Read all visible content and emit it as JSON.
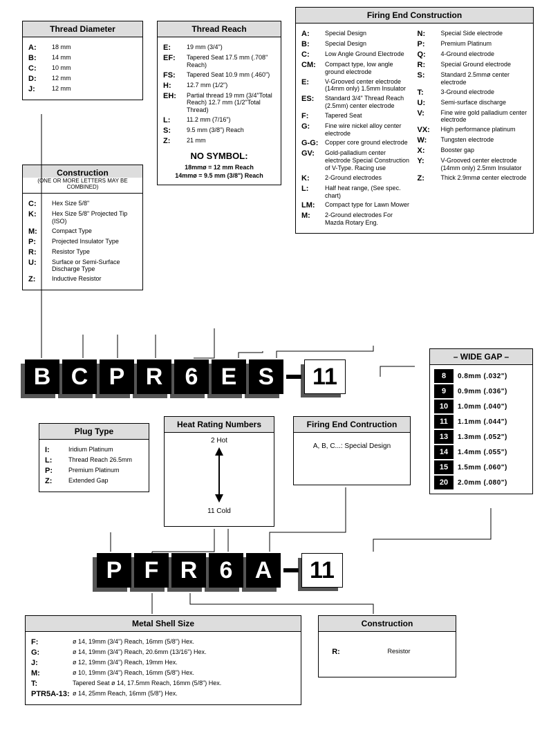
{
  "thread_diameter": {
    "title": "Thread Diameter",
    "items": [
      {
        "code": "A:",
        "desc": "18 mm"
      },
      {
        "code": "B:",
        "desc": "14 mm"
      },
      {
        "code": "C:",
        "desc": "10 mm"
      },
      {
        "code": "D:",
        "desc": "12 mm"
      },
      {
        "code": "J:",
        "desc": "12 mm"
      }
    ]
  },
  "construction_top": {
    "title": "Construction",
    "sub": "(ONE OR MORE LETTERS MAY BE COMBINED)",
    "items": [
      {
        "code": "C:",
        "desc": "Hex Size 5/8\""
      },
      {
        "code": "K:",
        "desc": "Hex Size 5/8\" Projected Tip (ISO)"
      },
      {
        "code": "M:",
        "desc": "Compact Type"
      },
      {
        "code": "P:",
        "desc": "Projected Insulator Type"
      },
      {
        "code": "R:",
        "desc": "Resistor Type"
      },
      {
        "code": "U:",
        "desc": "Surface or Semi-Surface Discharge Type"
      },
      {
        "code": "Z:",
        "desc": "Inductive Resistor"
      }
    ]
  },
  "thread_reach": {
    "title": "Thread Reach",
    "items": [
      {
        "code": "E:",
        "desc": "19 mm (3/4\")"
      },
      {
        "code": "EF:",
        "desc": "Tapered Seat 17.5 mm (.708\" Reach)"
      },
      {
        "code": "FS:",
        "desc": "Tapered Seat 10.9 mm (.460\")"
      },
      {
        "code": "H:",
        "desc": "12.7 mm (1/2\")"
      },
      {
        "code": "EH:",
        "desc": "Partial thread 19 mm (3/4\"Total Reach) 12.7 mm (1/2\"Total Thread)"
      },
      {
        "code": "L:",
        "desc": "11.2 mm (7/16\")"
      },
      {
        "code": "S:",
        "desc": "9.5 mm (3/8\") Reach"
      },
      {
        "code": "Z:",
        "desc": "21 mm"
      }
    ],
    "nosym_title": "NO SYMBOL:",
    "nosym_lines": [
      "18mmø = 12 mm Reach",
      "14mmø = 9.5 mm (3/8\") Reach"
    ]
  },
  "firing_end_construction": {
    "title": "Firing End Construction",
    "left": [
      {
        "code": "A:",
        "desc": "Special Design"
      },
      {
        "code": "B:",
        "desc": "Special Design"
      },
      {
        "code": "C:",
        "desc": "Low Angle Ground Electrode"
      },
      {
        "code": "CM:",
        "desc": "Compact type, low angle ground electrode"
      },
      {
        "code": "E:",
        "desc": "V-Grooved center electrode (14mm only) 1.5mm Insulator"
      },
      {
        "code": "ES:",
        "desc": "Standard 3/4\" Thread Reach (2.5mm) center electrode"
      },
      {
        "code": "F:",
        "desc": "Tapered Seat"
      },
      {
        "code": "G:",
        "desc": "Fine wire nickel alloy center electrode"
      },
      {
        "code": "G-G:",
        "desc": "Copper core ground electrode"
      },
      {
        "code": "GV:",
        "desc": "Gold-palladium center electrode Special Construction of V-Type. Racing use"
      },
      {
        "code": "K:",
        "desc": "2-Ground electrodes"
      },
      {
        "code": "L:",
        "desc": "Half heat range, (See spec. chart)"
      },
      {
        "code": "LM:",
        "desc": "Compact type for Lawn Mower"
      },
      {
        "code": "M:",
        "desc": "2-Ground electrodes For Mazda Rotary Eng."
      }
    ],
    "right": [
      {
        "code": "N:",
        "desc": "Special Side electrode"
      },
      {
        "code": "P:",
        "desc": "Premium Platinum"
      },
      {
        "code": "Q:",
        "desc": "4-Ground electrode"
      },
      {
        "code": "R:",
        "desc": "Special Ground electrode"
      },
      {
        "code": "S:",
        "desc": "Standard 2.5mmø center electrode"
      },
      {
        "code": "T:",
        "desc": "3-Ground electrode"
      },
      {
        "code": "U:",
        "desc": "Semi-surface discharge"
      },
      {
        "code": "V:",
        "desc": "Fine wire gold palladium center electrode"
      },
      {
        "code": "VX:",
        "desc": "High performance platinum"
      },
      {
        "code": "W:",
        "desc": "Tungsten electrode"
      },
      {
        "code": "X:",
        "desc": "Booster gap"
      },
      {
        "code": "Y:",
        "desc": "V-Grooved center electrode (14mm only) 2.5mm Insulator"
      },
      {
        "code": "Z:",
        "desc": "Thick 2.9mmø center electrode"
      }
    ]
  },
  "code_row_1": [
    "B",
    "C",
    "P",
    "R",
    "6",
    "E",
    "S",
    "-",
    "11"
  ],
  "wide_gap": {
    "title": "– WIDE GAP –",
    "items": [
      {
        "num": "8",
        "txt": "0.8mm (.032\")"
      },
      {
        "num": "9",
        "txt": "0.9mm (.036\")"
      },
      {
        "num": "10",
        "txt": "1.0mm (.040\")"
      },
      {
        "num": "11",
        "txt": "1.1mm (.044\")"
      },
      {
        "num": "13",
        "txt": "1.3mm (.052\")"
      },
      {
        "num": "14",
        "txt": "1.4mm (.055\")"
      },
      {
        "num": "15",
        "txt": "1.5mm (.060\")"
      },
      {
        "num": "20",
        "txt": "2.0mm (.080\")"
      }
    ]
  },
  "plug_type": {
    "title": "Plug Type",
    "items": [
      {
        "code": "I:",
        "desc": "Iridium Platinum"
      },
      {
        "code": "L:",
        "desc": "Thread Reach 26.5mm"
      },
      {
        "code": "P:",
        "desc": "Premium Platinum"
      },
      {
        "code": "Z:",
        "desc": "Extended Gap"
      }
    ]
  },
  "heat_rating": {
    "title": "Heat Rating Numbers",
    "top": "2 Hot",
    "bottom": "11 Cold"
  },
  "firing_end_small": {
    "title": "Firing End Contruction",
    "body": "A, B, C...: Special Design"
  },
  "code_row_2": [
    "P",
    "F",
    "R",
    "6",
    "A",
    "-",
    "11"
  ],
  "metal_shell": {
    "title": "Metal Shell Size",
    "items": [
      {
        "code": "F:",
        "desc": "ø 14, 19mm (3/4\") Reach, 16mm (5/8\") Hex."
      },
      {
        "code": "G:",
        "desc": "ø 14, 19mm (3/4\") Reach, 20.6mm (13/16\") Hex."
      },
      {
        "code": "J:",
        "desc": "ø 12, 19mm (3/4\") Reach, 19mm Hex."
      },
      {
        "code": "M:",
        "desc": "ø 10, 19mm (3/4\") Reach, 16mm (5/8\") Hex."
      },
      {
        "code": "T:",
        "desc": "Tapered Seat ø 14, 17.5mm Reach, 16mm (5/8\") Hex."
      },
      {
        "code": "PTR5A-13:",
        "desc": "ø 14, 25mm Reach, 16mm (5/8\") Hex."
      }
    ]
  },
  "construction_bot": {
    "title": "Construction",
    "items": [
      {
        "code": "R:",
        "desc": "Resistor"
      }
    ]
  }
}
